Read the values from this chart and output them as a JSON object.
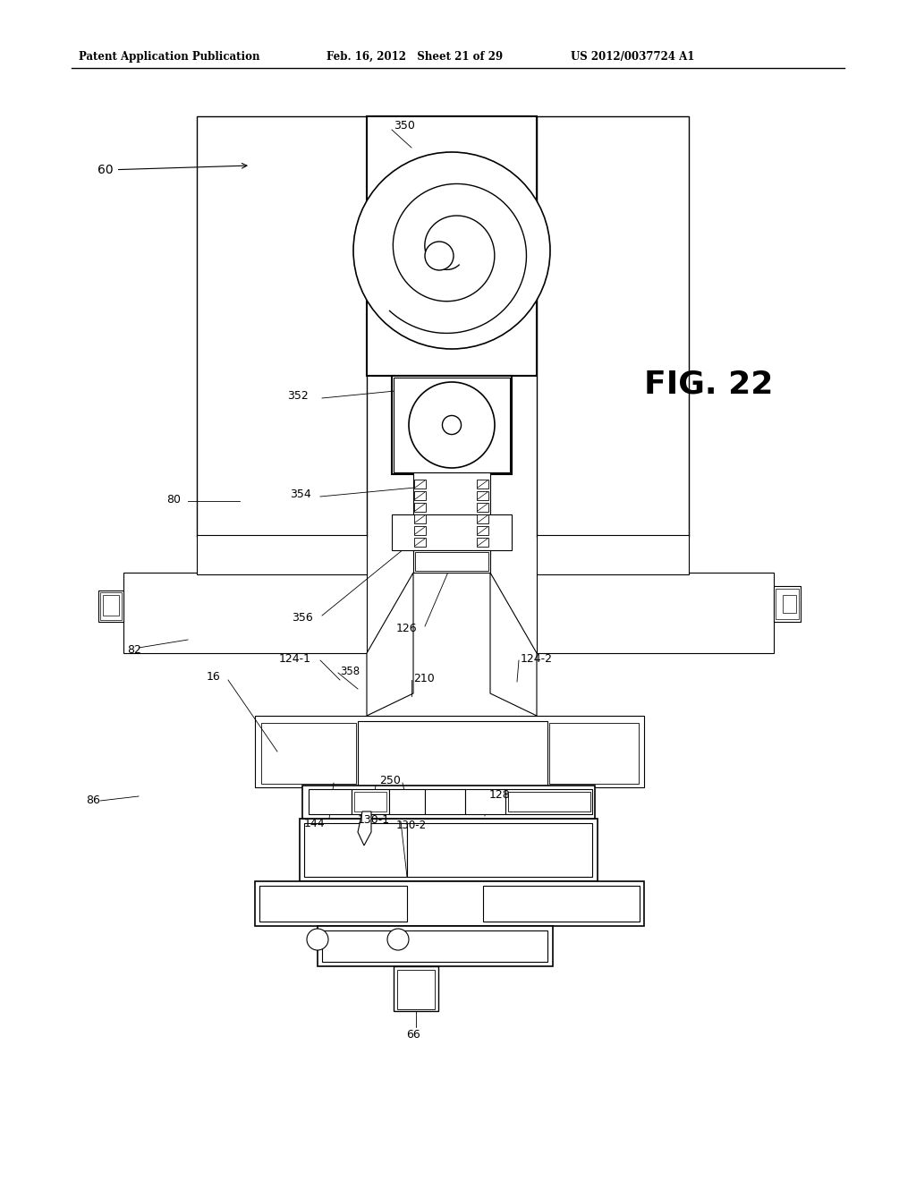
{
  "bg_color": "#ffffff",
  "line_color": "#000000",
  "header_left": "Patent Application Publication",
  "header_mid": "Feb. 16, 2012   Sheet 21 of 29",
  "header_right": "US 2012/0037724 A1",
  "fig_label": "FIG. 22"
}
